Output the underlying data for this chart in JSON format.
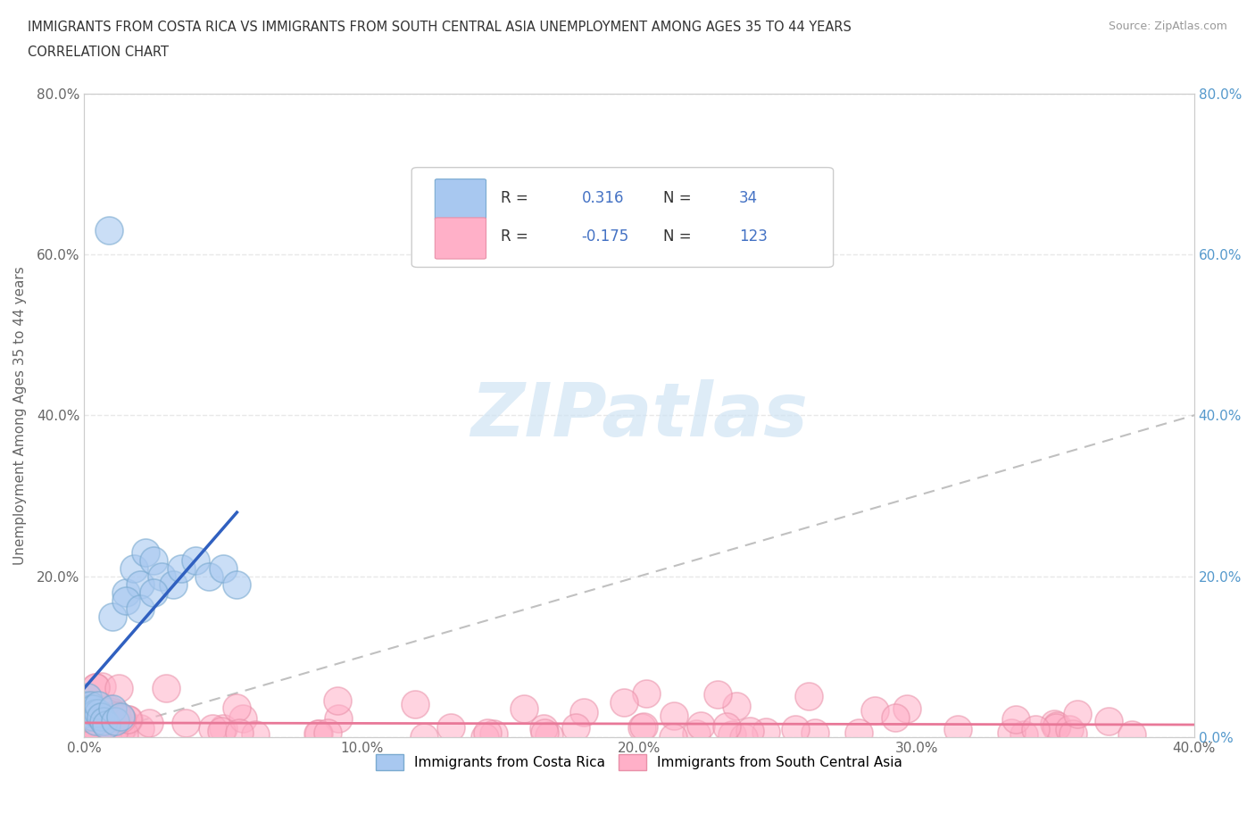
{
  "title_line1": "IMMIGRANTS FROM COSTA RICA VS IMMIGRANTS FROM SOUTH CENTRAL ASIA UNEMPLOYMENT AMONG AGES 35 TO 44 YEARS",
  "title_line2": "CORRELATION CHART",
  "source_text": "Source: ZipAtlas.com",
  "ylabel": "Unemployment Among Ages 35 to 44 years",
  "xlim": [
    0.0,
    0.4
  ],
  "ylim": [
    0.0,
    0.8
  ],
  "series1_color": "#a8c8f0",
  "series1_edge": "#7aaad0",
  "series2_color": "#ffb0c8",
  "series2_edge": "#e890a8",
  "series1_label": "Immigrants from Costa Rica",
  "series2_label": "Immigrants from South Central Asia",
  "R1": 0.316,
  "N1": 34,
  "R2": -0.175,
  "N2": 123,
  "legend_color": "#4472c4",
  "trend1_color": "#3060c0",
  "trend2_color": "#e87898",
  "diagonal_color": "#c0c0c0",
  "background_color": "#ffffff",
  "grid_color": "#e8e8e8",
  "watermark_color": "#d0e4f4",
  "right_tick_color": "#5599cc"
}
